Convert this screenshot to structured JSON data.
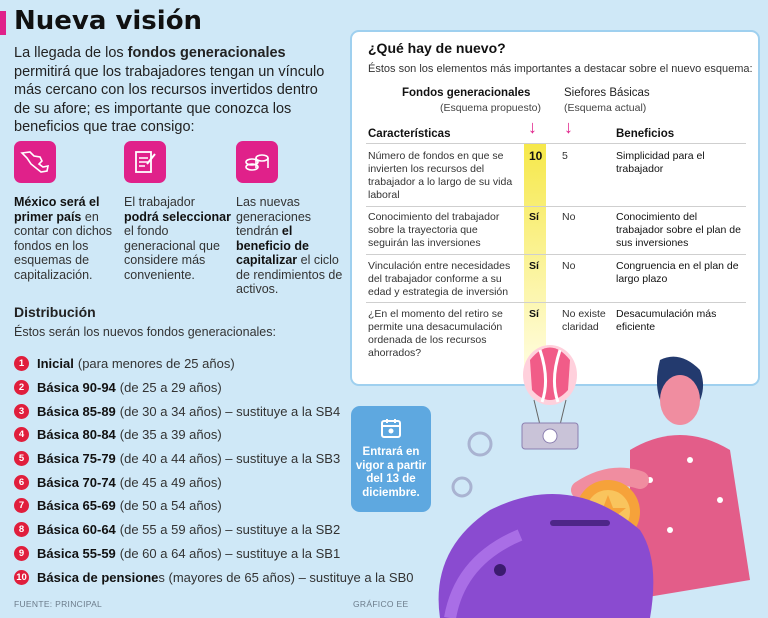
{
  "title": "Nueva visión",
  "intro": {
    "p1": "La llegada de los ",
    "bold": "fondos generacionales",
    "p2": " permitirá que los trabajadores tengan un vínculo más cercano con los recursos invertidos dentro de su afore; es importante que conozca los beneficios que trae consigo:"
  },
  "features": [
    {
      "icon": "mexico-map-icon",
      "bold1": "México será el primer país",
      "text1": " en contar con dichos fondos en los esquemas de capitalización.",
      "bold2": "",
      "text2": ""
    },
    {
      "icon": "checklist-icon",
      "text0": "El trabajador ",
      "bold1": "podrá seleccionar",
      "text1": " el fondo generacional que considere más conveniente."
    },
    {
      "icon": "coins-icon",
      "text0": "Las nuevas generaciones tendrán ",
      "bold1": "el beneficio de capitalizar",
      "text1": " el ciclo de rendimientos de activos."
    }
  ],
  "distribution": {
    "heading": "Distribución",
    "subtitle": "Éstos serán los nuevos fondos generacionales:",
    "items": [
      {
        "n": "1",
        "name": "Inicial",
        "detail": "(para menores de 25 años)"
      },
      {
        "n": "2",
        "name": "Básica 90-94",
        "detail": "(de 25 a 29 años)"
      },
      {
        "n": "3",
        "name": "Básica 85-89",
        "detail": "(de 30 a 34 años) – sustituye a la SB4"
      },
      {
        "n": "4",
        "name": "Básica 80-84",
        "detail": "(de 35 a 39 años)"
      },
      {
        "n": "5",
        "name": "Básica 75-79",
        "detail": "(de 40 a 44 años) – sustituye a la SB3"
      },
      {
        "n": "6",
        "name": "Básica 70-74",
        "detail": "(de 45 a 49 años)"
      },
      {
        "n": "7",
        "name": "Básica 65-69",
        "detail": "(de 50 a 54 años)"
      },
      {
        "n": "8",
        "name": "Básica 60-64",
        "detail": "(de 55 a 59 años) – sustituye a la SB2"
      },
      {
        "n": "9",
        "name": "Básica 55-59",
        "detail": "(de 60 a 64 años) – sustituye a la SB1"
      },
      {
        "n": "10",
        "name": "Básica de pensione",
        "detail": "s (mayores de 65 años) – sustituye a la SB0"
      }
    ]
  },
  "footer": {
    "source": "FUENTE: PRINCIPAL",
    "credit": "GRÁFICO EE"
  },
  "card": {
    "heading": "¿Qué hay de nuevo?",
    "subtitle": "Éstos son los elementos más importantes a destacar sobre el nuevo esquema:",
    "col_fg": "Fondos generacionales",
    "col_fg_sub": "(Esquema propuesto)",
    "col_sb": "Siefores Básicas",
    "col_sb_sub": "(Esquema actual)",
    "col_char": "Características",
    "col_ben": "Beneficios",
    "rows": [
      {
        "char": "Número de fondos en que se invierten los recursos del trabajador a lo largo de su vida laboral",
        "fg": "10",
        "sb": "5",
        "ben": "Simplicidad para el trabajador"
      },
      {
        "char": "Conocimiento del trabajador sobre la trayectoria que seguirán las inversiones",
        "fg": "Sí",
        "sb": "No",
        "ben": "Conocimiento del trabajador sobre el plan de sus inversiones"
      },
      {
        "char": "Vinculación entre necesidades del trabajador conforme a su edad y estrategia de inversión",
        "fg": "Sí",
        "sb": "No",
        "ben": "Congruencia en el plan de largo plazo"
      },
      {
        "char": "¿En el momento del retiro se permite una desacumulación ordenada de los recursos ahorrados?",
        "fg": "Sí",
        "sb": "No existe claridad",
        "ben": "Desacumulación más eficiente"
      }
    ]
  },
  "notice": "Entrará en vigor a partir del 13 de diciembre."
}
